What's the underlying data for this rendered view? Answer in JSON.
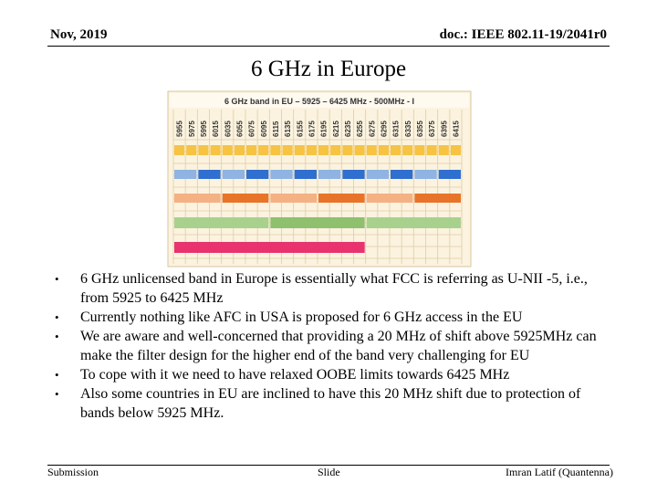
{
  "header": {
    "date": "Nov, 2019",
    "doc": "doc.: IEEE 802.11-19/2041r0"
  },
  "title": "6 GHz in Europe",
  "figure": {
    "title": "6 GHz band in EU – 5925 – 6425 MHz - 500MHz - I",
    "channels": [
      5955,
      5975,
      5995,
      6015,
      6035,
      6055,
      6075,
      6095,
      6115,
      6135,
      6155,
      6175,
      6195,
      6215,
      6235,
      6255,
      6275,
      6295,
      6315,
      6335,
      6355,
      6375,
      6395,
      6415
    ]
  },
  "bullets": [
    "6 GHz unlicensed band in Europe is essentially what FCC is referring as U-NII -5, i.e., from 5925 to 6425 MHz",
    "Currently nothing like AFC in USA is proposed for 6 GHz access in the EU",
    "We are aware and well-concerned that providing a 20 MHz of shift above 5925MHz can make the filter design for the higher end of the band very challenging for EU",
    "To cope with it we need to have relaxed OOBE limits towards 6425 MHz",
    "Also some countries in EU are inclined to have this 20 MHz shift due to protection of bands below 5925 MHz."
  ],
  "footer": {
    "left": "Submission",
    "center": "Slide",
    "right": "Imran Latif (Quantenna)"
  }
}
